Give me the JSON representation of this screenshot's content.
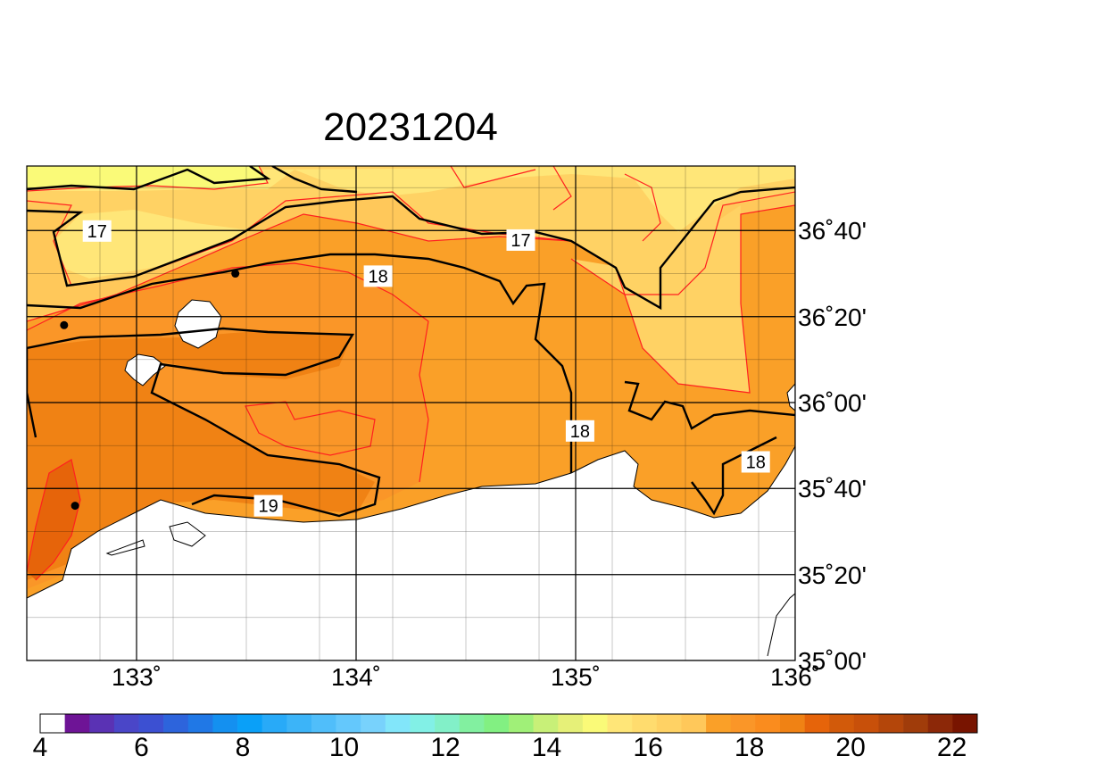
{
  "title": "20231204",
  "lon_ticks": [
    {
      "label": "133˚",
      "lon": 133
    },
    {
      "label": "134˚",
      "lon": 134
    },
    {
      "label": "135˚",
      "lon": 135
    },
    {
      "label": "136˚",
      "lon": 136
    }
  ],
  "lat_ticks": [
    {
      "label": "36˚40'",
      "lat": 36.667
    },
    {
      "label": "36˚20'",
      "lat": 36.333
    },
    {
      "label": "36˚00'",
      "lat": 36.0
    },
    {
      "label": "35˚40'",
      "lat": 35.667
    },
    {
      "label": "35˚20'",
      "lat": 35.333
    },
    {
      "label": "35˚00'",
      "lat": 35.0
    }
  ],
  "extent": {
    "lon_min": 132.5,
    "lon_max": 136.0,
    "lat_min": 35.0,
    "lat_max": 36.917
  },
  "contour_labels": [
    {
      "text": "17",
      "lon": 132.82,
      "lat": 36.665
    },
    {
      "text": "17",
      "lon": 134.75,
      "lat": 36.63
    },
    {
      "text": "18",
      "lon": 134.1,
      "lat": 36.49
    },
    {
      "text": "18",
      "lon": 135.02,
      "lat": 35.89
    },
    {
      "text": "18",
      "lon": 135.82,
      "lat": 35.77
    },
    {
      "text": "19",
      "lon": 133.6,
      "lat": 35.6
    }
  ],
  "stations": [
    {
      "lon": 133.45,
      "lat": 36.5
    },
    {
      "lon": 132.67,
      "lat": 36.3
    },
    {
      "lon": 132.72,
      "lat": 35.6
    }
  ],
  "colorbar": {
    "min": 4,
    "max": 22.5,
    "step": 0.5,
    "tick_labels": [
      "4",
      "6",
      "8",
      "10",
      "12",
      "14",
      "16",
      "18",
      "20",
      "22"
    ],
    "colors": [
      "#ffffff",
      "#6e1496",
      "#5a32b4",
      "#4a46c8",
      "#3c50d2",
      "#2d64dc",
      "#2078e6",
      "#1490f0",
      "#0aa0f8",
      "#28aaf8",
      "#3cb4f8",
      "#50befa",
      "#64c8fc",
      "#78d2fc",
      "#82e6fa",
      "#82f0e6",
      "#82f0c8",
      "#82f0a0",
      "#82f082",
      "#a0f078",
      "#c8f078",
      "#e6f078",
      "#fafa78",
      "#ffe678",
      "#ffdc6e",
      "#ffd264",
      "#ffc85a",
      "#faa028",
      "#fa9628",
      "#fa8c1e",
      "#f08214",
      "#e6640a",
      "#d25a0a",
      "#c8500a",
      "#b4460a",
      "#a03c0a",
      "#8c2808",
      "#781400"
    ]
  },
  "field_colors": {
    "band_16_5": "#ffe678",
    "band_17": "#ffd264",
    "band_17_5": "#ffc85a",
    "band_18": "#faa028",
    "band_18_5": "#fa9628",
    "band_19": "#f08214",
    "band_19_5": "#e6640a",
    "band_low": "#fafa78",
    "contour_black": "#000000",
    "contour_red": "#ff2020"
  }
}
